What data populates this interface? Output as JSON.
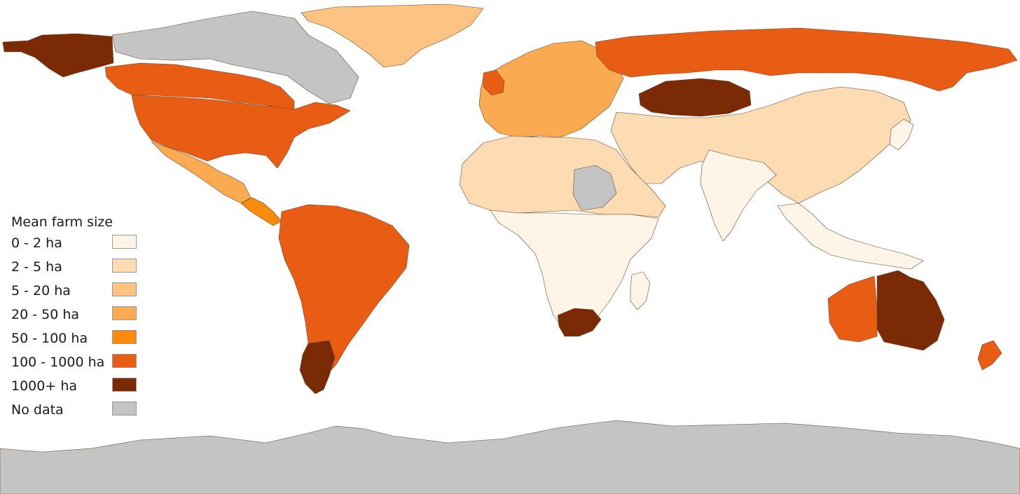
{
  "legend": {
    "title": "Mean farm size",
    "classes": [
      {
        "label": "0 - 2 ha",
        "color": "#fef4e7"
      },
      {
        "label": "2 - 5 ha",
        "color": "#fddcb4"
      },
      {
        "label": "5 - 20 ha",
        "color": "#fcc382"
      },
      {
        "label": "20 - 50 ha",
        "color": "#faab52"
      },
      {
        "label": "50 - 100 ha",
        "color": "#fb8a0d"
      },
      {
        "label": "100 - 1000 ha",
        "color": "#e95c14"
      },
      {
        "label": "1000+ ha",
        "color": "#7b2a06"
      },
      {
        "label": "No data",
        "color": "#c4c4c4"
      }
    ]
  },
  "regions": [
    {
      "name": "antarctica",
      "class": "No data"
    },
    {
      "name": "greenland",
      "class": "5 - 20 ha"
    },
    {
      "name": "canada-arctic",
      "class": "No data"
    },
    {
      "name": "alaska",
      "class": "1000+ ha"
    },
    {
      "name": "canada",
      "class": "100 - 1000 ha"
    },
    {
      "name": "united-states",
      "class": "100 - 1000 ha"
    },
    {
      "name": "mexico",
      "class": "20 - 50 ha"
    },
    {
      "name": "central-america",
      "class": "50 - 100 ha"
    },
    {
      "name": "south-america",
      "class": "100 - 1000 ha"
    },
    {
      "name": "patagonia",
      "class": "1000+ ha"
    },
    {
      "name": "europe",
      "class": "20 - 50 ha"
    },
    {
      "name": "russia",
      "class": "100 - 1000 ha"
    },
    {
      "name": "kazakhstan",
      "class": "1000+ ha"
    },
    {
      "name": "asia",
      "class": "2 - 5 ha"
    },
    {
      "name": "india",
      "class": "0 - 2 ha"
    },
    {
      "name": "africa-north",
      "class": "2 - 5 ha"
    },
    {
      "name": "africa-central",
      "class": "0 - 2 ha"
    },
    {
      "name": "sudan",
      "class": "No data"
    },
    {
      "name": "south-africa",
      "class": "1000+ ha"
    },
    {
      "name": "madagascar",
      "class": "0 - 2 ha"
    },
    {
      "name": "australia-west",
      "class": "100 - 1000 ha"
    },
    {
      "name": "australia-east",
      "class": "1000+ ha"
    },
    {
      "name": "new-zealand",
      "class": "100 - 1000 ha"
    },
    {
      "name": "southeast-asia",
      "class": "0 - 2 ha"
    },
    {
      "name": "japan",
      "class": "0 - 2 ha"
    },
    {
      "name": "uk-ireland",
      "class": "100 - 1000 ha"
    }
  ]
}
